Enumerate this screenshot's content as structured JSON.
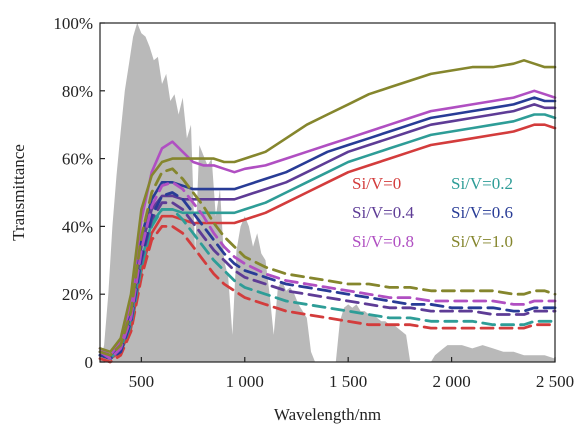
{
  "chart_data": {
    "type": "line",
    "xlabel": "Wavelength/nm",
    "ylabel": "Transmittance",
    "xlim": [
      300,
      2500
    ],
    "ylim": [
      0,
      100
    ],
    "x_ticks": [
      500,
      1000,
      1500,
      2000,
      2500
    ],
    "x_tick_labels": [
      "500",
      "1 000",
      "1 500",
      "2 000",
      "2 500"
    ],
    "y_ticks": [
      0,
      20,
      40,
      60,
      80,
      100
    ],
    "y_tick_labels": [
      "0",
      "20%",
      "40%",
      "60%",
      "80%",
      "100%"
    ],
    "grid": false,
    "legend_position": "center-right",
    "background_spectrum": {
      "color": "#b9b9b9",
      "x": [
        300,
        320,
        340,
        360,
        380,
        400,
        420,
        440,
        460,
        480,
        500,
        520,
        540,
        560,
        580,
        600,
        620,
        640,
        660,
        680,
        700,
        720,
        740,
        760,
        780,
        800,
        820,
        840,
        860,
        880,
        900,
        920,
        940,
        960,
        980,
        1000,
        1020,
        1040,
        1060,
        1080,
        1100,
        1120,
        1140,
        1160,
        1180,
        1200,
        1220,
        1240,
        1260,
        1280,
        1300,
        1320,
        1340,
        1360,
        1380,
        1400,
        1420,
        1440,
        1460,
        1480,
        1500,
        1520,
        1540,
        1560,
        1580,
        1600,
        1620,
        1640,
        1660,
        1680,
        1700,
        1720,
        1740,
        1760,
        1780,
        1800,
        1820,
        1840,
        1860,
        1880,
        1900,
        1920,
        1940,
        1960,
        1980,
        2000,
        2050,
        2100,
        2150,
        2200,
        2250,
        2300,
        2350,
        2400,
        2450,
        2500
      ],
      "y": [
        0,
        5,
        20,
        40,
        55,
        68,
        80,
        88,
        96,
        100,
        97,
        96,
        93,
        89,
        90,
        82,
        85,
        77,
        79,
        73,
        78,
        66,
        70,
        32,
        64,
        61,
        58,
        60,
        43,
        51,
        30,
        25,
        8,
        33,
        40,
        43,
        40,
        34,
        38,
        32,
        30,
        20,
        8,
        22,
        24,
        21,
        22,
        20,
        17,
        15,
        13,
        3,
        0,
        0,
        0,
        0,
        0,
        0,
        12,
        16,
        17,
        16,
        17,
        15,
        15,
        14,
        14,
        13,
        12,
        12,
        11,
        11,
        10,
        9,
        8,
        0,
        0,
        0,
        0,
        0,
        0,
        2,
        3,
        4,
        5,
        5,
        5,
        4,
        5,
        4,
        3,
        3,
        2,
        2,
        2,
        1
      ]
    },
    "x": [
      300,
      350,
      400,
      450,
      500,
      550,
      600,
      650,
      700,
      750,
      800,
      850,
      900,
      950,
      1000,
      1100,
      1200,
      1300,
      1400,
      1500,
      1600,
      1700,
      1800,
      1900,
      2000,
      2100,
      2200,
      2300,
      2350,
      2400,
      2450,
      2500
    ],
    "series": [
      {
        "name": "Si/V=0",
        "color": "#d33c3c",
        "style": "solid",
        "values": [
          2,
          1,
          3,
          10,
          27,
          38,
          43,
          43,
          42,
          41,
          41,
          41,
          41,
          41,
          42,
          44,
          47,
          50,
          53,
          56,
          58,
          60,
          62,
          64,
          65,
          66,
          67,
          68,
          69,
          70,
          70,
          69
        ]
      },
      {
        "name": "Si/V=0.2",
        "color": "#2e9d97",
        "style": "solid",
        "values": [
          3,
          1,
          4,
          12,
          30,
          41,
          45,
          45,
          44,
          44,
          44,
          44,
          44,
          44,
          45,
          47,
          50,
          53,
          56,
          59,
          61,
          63,
          65,
          67,
          68,
          69,
          70,
          71,
          72,
          73,
          73,
          72
        ]
      },
      {
        "name": "Si/V=0.4",
        "color": "#5e3c96",
        "style": "solid",
        "values": [
          3,
          2,
          5,
          14,
          34,
          45,
          49,
          49,
          48,
          48,
          48,
          48,
          48,
          48,
          49,
          51,
          53,
          56,
          59,
          62,
          64,
          66,
          68,
          70,
          71,
          72,
          73,
          74,
          75,
          76,
          75,
          75
        ]
      },
      {
        "name": "Si/V=0.6",
        "color": "#283c96",
        "style": "solid",
        "values": [
          3,
          2,
          5,
          15,
          37,
          48,
          53,
          53,
          52,
          51,
          51,
          51,
          51,
          51,
          52,
          54,
          56,
          59,
          62,
          64,
          66,
          68,
          70,
          72,
          73,
          74,
          75,
          76,
          77,
          78,
          77,
          77
        ]
      },
      {
        "name": "Si/V=0.8",
        "color": "#b04fc2",
        "style": "solid",
        "values": [
          4,
          2,
          6,
          17,
          42,
          56,
          63,
          65,
          62,
          59,
          58,
          58,
          57,
          56,
          57,
          58,
          60,
          62,
          64,
          66,
          68,
          70,
          72,
          74,
          75,
          76,
          77,
          78,
          79,
          80,
          79,
          78
        ]
      },
      {
        "name": "Si/V=1.0",
        "color": "#85862d",
        "style": "solid",
        "values": [
          4,
          3,
          7,
          20,
          45,
          55,
          59,
          60,
          60,
          60,
          60,
          60,
          59,
          59,
          60,
          62,
          66,
          70,
          73,
          76,
          79,
          81,
          83,
          85,
          86,
          87,
          87,
          88,
          89,
          88,
          87,
          87
        ]
      },
      {
        "name": "",
        "color": "#d33c3c",
        "style": "dashed",
        "values": [
          1,
          0,
          2,
          9,
          25,
          36,
          40,
          40,
          38,
          34,
          30,
          26,
          23,
          21,
          19,
          17,
          15,
          14,
          13,
          12,
          11,
          11,
          11,
          10,
          10,
          10,
          10,
          10,
          10,
          11,
          11,
          11
        ]
      },
      {
        "name": "",
        "color": "#2e9d97",
        "style": "dashed",
        "values": [
          2,
          1,
          3,
          11,
          28,
          40,
          45,
          45,
          42,
          38,
          34,
          30,
          27,
          24,
          22,
          20,
          18,
          17,
          16,
          15,
          14,
          13,
          13,
          12,
          12,
          12,
          11,
          11,
          11,
          12,
          12,
          12
        ]
      },
      {
        "name": "",
        "color": "#5e3c96",
        "style": "dashed",
        "values": [
          2,
          1,
          3,
          12,
          30,
          42,
          47,
          47,
          45,
          41,
          37,
          33,
          30,
          27,
          25,
          23,
          21,
          20,
          19,
          18,
          17,
          16,
          16,
          15,
          15,
          15,
          14,
          14,
          14,
          15,
          15,
          15
        ]
      },
      {
        "name": "",
        "color": "#283c96",
        "style": "dashed",
        "values": [
          2,
          1,
          3,
          12,
          31,
          43,
          49,
          50,
          48,
          44,
          40,
          36,
          32,
          29,
          27,
          25,
          23,
          22,
          21,
          20,
          19,
          18,
          17,
          17,
          16,
          16,
          16,
          15,
          15,
          16,
          16,
          16
        ]
      },
      {
        "name": "",
        "color": "#b04fc2",
        "style": "dashed",
        "values": [
          3,
          1,
          4,
          13,
          33,
          46,
          52,
          53,
          51,
          47,
          43,
          38,
          34,
          31,
          29,
          26,
          24,
          23,
          22,
          21,
          20,
          19,
          19,
          18,
          18,
          18,
          18,
          17,
          17,
          18,
          18,
          18
        ]
      },
      {
        "name": "",
        "color": "#85862d",
        "style": "dashed",
        "values": [
          3,
          2,
          5,
          15,
          37,
          50,
          56,
          57,
          54,
          50,
          46,
          41,
          37,
          34,
          31,
          28,
          26,
          25,
          24,
          23,
          23,
          22,
          22,
          21,
          21,
          21,
          21,
          20,
          20,
          21,
          21,
          20
        ]
      }
    ],
    "legend": [
      {
        "label": "Si/V=0",
        "color": "#d33c3c"
      },
      {
        "label": "Si/V=0.2",
        "color": "#2e9d97"
      },
      {
        "label": "Si/V=0.4",
        "color": "#5e3c96"
      },
      {
        "label": "Si/V=0.6",
        "color": "#283c96"
      },
      {
        "label": "Si/V=0.8",
        "color": "#b04fc2"
      },
      {
        "label": "Si/V=1.0",
        "color": "#85862d"
      }
    ]
  }
}
